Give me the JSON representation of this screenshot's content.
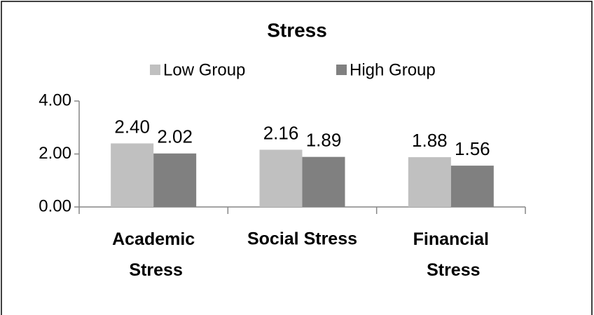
{
  "chart_data": {
    "type": "bar",
    "title": "Stress",
    "categories": [
      "Academic Stress",
      "Social Stress",
      "Financial Stress"
    ],
    "series": [
      {
        "name": "Low Group",
        "color": "#c0c0c0",
        "values": [
          2.4,
          2.16,
          1.88
        ],
        "value_labels": [
          "2.40",
          "2.16",
          "1.88"
        ]
      },
      {
        "name": "High Group",
        "color": "#808080",
        "values": [
          2.02,
          1.89,
          1.56
        ],
        "value_labels": [
          "2.02",
          "1.89",
          "1.56"
        ]
      }
    ],
    "ylim": [
      0,
      4
    ],
    "yticks": [
      {
        "value": 0,
        "label": "0.00"
      },
      {
        "value": 2,
        "label": "2.00"
      },
      {
        "value": 4,
        "label": "4.00"
      }
    ],
    "legend": "top"
  }
}
